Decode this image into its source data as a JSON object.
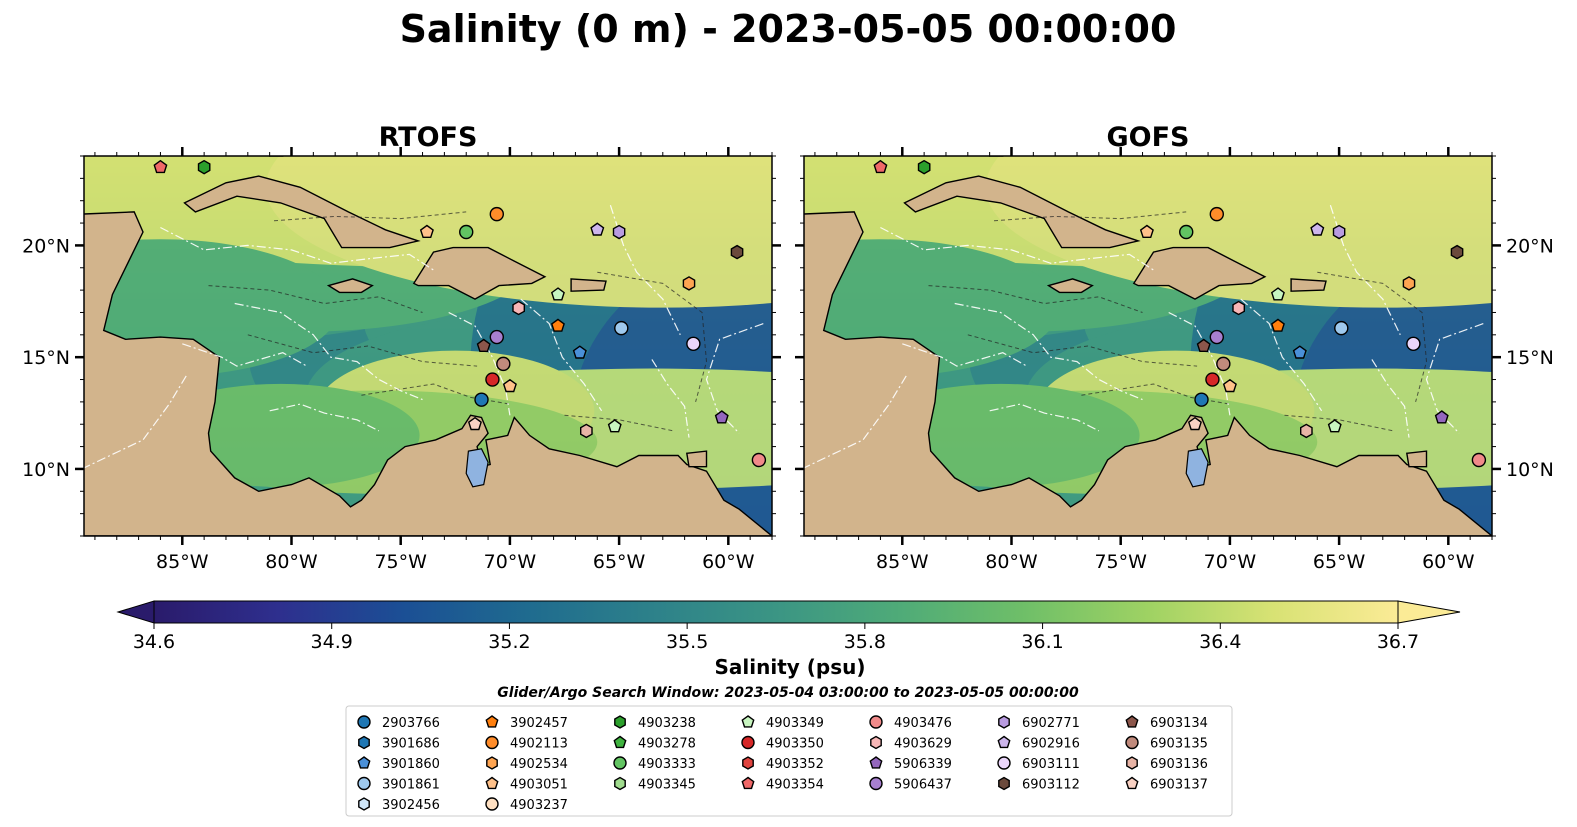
{
  "figure_title": "Salinity (0 m) - 2023-05-05 00:00:00",
  "colorbar": {
    "label": "Salinity (psu)",
    "min": 34.6,
    "max": 36.7,
    "ticks": [
      "34.6",
      "34.9",
      "35.2",
      "35.5",
      "35.8",
      "36.1",
      "36.4",
      "36.7"
    ],
    "extend": "both",
    "colormap": "haline",
    "stops": [
      "#2a1b6b",
      "#2e2f8e",
      "#1b4f95",
      "#1f6b8f",
      "#2d818a",
      "#3b9584",
      "#4fab78",
      "#6fbf68",
      "#9fd263",
      "#d8e274",
      "#fbeb96"
    ]
  },
  "search_window": "Glider/Argo Search Window: 2023-05-04 03:00:00 to 2023-05-05 00:00:00",
  "legend_columns": [
    [
      {
        "id": "2903766",
        "color": "#1f77b4",
        "marker": "circle"
      },
      {
        "id": "3901686",
        "color": "#1f77b4",
        "marker": "hexagon"
      },
      {
        "id": "3901860",
        "color": "#4a90d9",
        "marker": "pentagon"
      },
      {
        "id": "3901861",
        "color": "#9ec9ee",
        "marker": "circle"
      },
      {
        "id": "3902456",
        "color": "#cfe6f9",
        "marker": "hexagon"
      }
    ],
    [
      {
        "id": "3902457",
        "color": "#ff7f0e",
        "marker": "pentagon"
      },
      {
        "id": "4902113",
        "color": "#ff8c2a",
        "marker": "circle"
      },
      {
        "id": "4902534",
        "color": "#ffa552",
        "marker": "hexagon"
      },
      {
        "id": "4903051",
        "color": "#ffc18a",
        "marker": "pentagon"
      },
      {
        "id": "4903237",
        "color": "#ffe0c2",
        "marker": "circle"
      }
    ],
    [
      {
        "id": "4903238",
        "color": "#2ca02c",
        "marker": "hexagon"
      },
      {
        "id": "4903278",
        "color": "#3fb33f",
        "marker": "pentagon"
      },
      {
        "id": "4903333",
        "color": "#62c462",
        "marker": "circle"
      },
      {
        "id": "4903345",
        "color": "#a0dc8e",
        "marker": "hexagon"
      }
    ],
    [
      {
        "id": "4903349",
        "color": "#c8f5c0",
        "marker": "pentagon"
      },
      {
        "id": "4903350",
        "color": "#d62728",
        "marker": "circle"
      },
      {
        "id": "4903352",
        "color": "#e0443f",
        "marker": "hexagon"
      },
      {
        "id": "4903354",
        "color": "#f06868",
        "marker": "pentagon"
      }
    ],
    [
      {
        "id": "4903476",
        "color": "#f08a8a",
        "marker": "circle"
      },
      {
        "id": "4903629",
        "color": "#f7b6b6",
        "marker": "hexagon"
      },
      {
        "id": "5906339",
        "color": "#9467bd",
        "marker": "pentagon"
      },
      {
        "id": "5906437",
        "color": "#a77fcf",
        "marker": "circle"
      }
    ],
    [
      {
        "id": "6902771",
        "color": "#b99be0",
        "marker": "hexagon"
      },
      {
        "id": "6902916",
        "color": "#cdb6ec",
        "marker": "pentagon"
      },
      {
        "id": "6903111",
        "color": "#ebd6fb",
        "marker": "circle"
      },
      {
        "id": "6903112",
        "color": "#6b4a3c",
        "marker": "hexagon"
      }
    ],
    [
      {
        "id": "6903134",
        "color": "#8c564b",
        "marker": "pentagon"
      },
      {
        "id": "6903135",
        "color": "#c08a7c",
        "marker": "circle"
      },
      {
        "id": "6903136",
        "color": "#e8b4a6",
        "marker": "hexagon"
      },
      {
        "id": "6903137",
        "color": "#fad2c4",
        "marker": "pentagon"
      }
    ]
  ],
  "chart_data": [
    {
      "type": "heatmap",
      "title": "RTOFS",
      "xlim": [
        -89.5,
        -58.0
      ],
      "ylim": [
        7.0,
        24.0
      ],
      "xticks": [
        {
          "value": -85,
          "label": "85°W"
        },
        {
          "value": -80,
          "label": "80°W"
        },
        {
          "value": -75,
          "label": "75°W"
        },
        {
          "value": -70,
          "label": "70°W"
        },
        {
          "value": -65,
          "label": "65°W"
        },
        {
          "value": -60,
          "label": "60°W"
        }
      ],
      "yticks": [
        {
          "value": 10,
          "label": "10°N"
        },
        {
          "value": 15,
          "label": "15°N"
        },
        {
          "value": 20,
          "label": "20°N"
        }
      ],
      "ytick_side": "left",
      "floats": [
        {
          "id": "4903354",
          "lon": -86.0,
          "lat": 23.5
        },
        {
          "id": "4903238",
          "lon": -84.0,
          "lat": 23.5
        },
        {
          "id": "4903051",
          "lon": -73.8,
          "lat": 20.6
        },
        {
          "id": "4903333",
          "lon": -72.0,
          "lat": 20.6
        },
        {
          "id": "4902113",
          "lon": -70.6,
          "lat": 21.4
        },
        {
          "id": "6902916",
          "lon": -66.0,
          "lat": 20.7
        },
        {
          "id": "6902771",
          "lon": -65.0,
          "lat": 20.6
        },
        {
          "id": "6903112",
          "lon": -59.6,
          "lat": 19.7
        },
        {
          "id": "4903349",
          "lon": -67.8,
          "lat": 17.8
        },
        {
          "id": "4903629",
          "lon": -69.6,
          "lat": 17.2
        },
        {
          "id": "4902534",
          "lon": -61.8,
          "lat": 18.3
        },
        {
          "id": "3902457",
          "lon": -67.8,
          "lat": 16.4
        },
        {
          "id": "3901861",
          "lon": -64.9,
          "lat": 16.3
        },
        {
          "id": "5906437",
          "lon": -70.6,
          "lat": 15.9
        },
        {
          "id": "6903134",
          "lon": -71.2,
          "lat": 15.5
        },
        {
          "id": "3901860",
          "lon": -66.8,
          "lat": 15.2
        },
        {
          "id": "6903111",
          "lon": -61.6,
          "lat": 15.6
        },
        {
          "id": "6903135",
          "lon": -70.3,
          "lat": 14.7
        },
        {
          "id": "4903350",
          "lon": -70.8,
          "lat": 14.0
        },
        {
          "id": "4903051",
          "lon": -70.0,
          "lat": 13.7
        },
        {
          "id": "2903766",
          "lon": -71.3,
          "lat": 13.1
        },
        {
          "id": "5906339",
          "lon": -60.3,
          "lat": 12.3
        },
        {
          "id": "6903137",
          "lon": -71.6,
          "lat": 12.0
        },
        {
          "id": "4903349",
          "lon": -65.2,
          "lat": 11.9
        },
        {
          "id": "6903136",
          "lon": -66.5,
          "lat": 11.7
        },
        {
          "id": "4903476",
          "lon": -58.6,
          "lat": 10.4
        }
      ]
    },
    {
      "type": "heatmap",
      "title": "GOFS",
      "xlim": [
        -89.5,
        -58.0
      ],
      "ylim": [
        7.0,
        24.0
      ],
      "xticks": [
        {
          "value": -85,
          "label": "85°W"
        },
        {
          "value": -80,
          "label": "80°W"
        },
        {
          "value": -75,
          "label": "75°W"
        },
        {
          "value": -70,
          "label": "70°W"
        },
        {
          "value": -65,
          "label": "65°W"
        },
        {
          "value": -60,
          "label": "60°W"
        }
      ],
      "yticks": [
        {
          "value": 10,
          "label": "10°N"
        },
        {
          "value": 15,
          "label": "15°N"
        },
        {
          "value": 20,
          "label": "20°N"
        }
      ],
      "ytick_side": "right",
      "floats": [
        {
          "id": "4903354",
          "lon": -86.0,
          "lat": 23.5
        },
        {
          "id": "4903238",
          "lon": -84.0,
          "lat": 23.5
        },
        {
          "id": "4903051",
          "lon": -73.8,
          "lat": 20.6
        },
        {
          "id": "4903333",
          "lon": -72.0,
          "lat": 20.6
        },
        {
          "id": "4902113",
          "lon": -70.6,
          "lat": 21.4
        },
        {
          "id": "6902916",
          "lon": -66.0,
          "lat": 20.7
        },
        {
          "id": "6902771",
          "lon": -65.0,
          "lat": 20.6
        },
        {
          "id": "6903112",
          "lon": -59.6,
          "lat": 19.7
        },
        {
          "id": "4903349",
          "lon": -67.8,
          "lat": 17.8
        },
        {
          "id": "4903629",
          "lon": -69.6,
          "lat": 17.2
        },
        {
          "id": "4902534",
          "lon": -61.8,
          "lat": 18.3
        },
        {
          "id": "3902457",
          "lon": -67.8,
          "lat": 16.4
        },
        {
          "id": "3901861",
          "lon": -64.9,
          "lat": 16.3
        },
        {
          "id": "5906437",
          "lon": -70.6,
          "lat": 15.9
        },
        {
          "id": "6903134",
          "lon": -71.2,
          "lat": 15.5
        },
        {
          "id": "3901860",
          "lon": -66.8,
          "lat": 15.2
        },
        {
          "id": "6903111",
          "lon": -61.6,
          "lat": 15.6
        },
        {
          "id": "6903135",
          "lon": -70.3,
          "lat": 14.7
        },
        {
          "id": "4903350",
          "lon": -70.8,
          "lat": 14.0
        },
        {
          "id": "4903051",
          "lon": -70.0,
          "lat": 13.7
        },
        {
          "id": "2903766",
          "lon": -71.3,
          "lat": 13.1
        },
        {
          "id": "5906339",
          "lon": -60.3,
          "lat": 12.3
        },
        {
          "id": "6903137",
          "lon": -71.6,
          "lat": 12.0
        },
        {
          "id": "4903349",
          "lon": -65.2,
          "lat": 11.9
        },
        {
          "id": "6903136",
          "lon": -66.5,
          "lat": 11.7
        },
        {
          "id": "4903476",
          "lon": -58.6,
          "lat": 10.4
        }
      ]
    }
  ]
}
